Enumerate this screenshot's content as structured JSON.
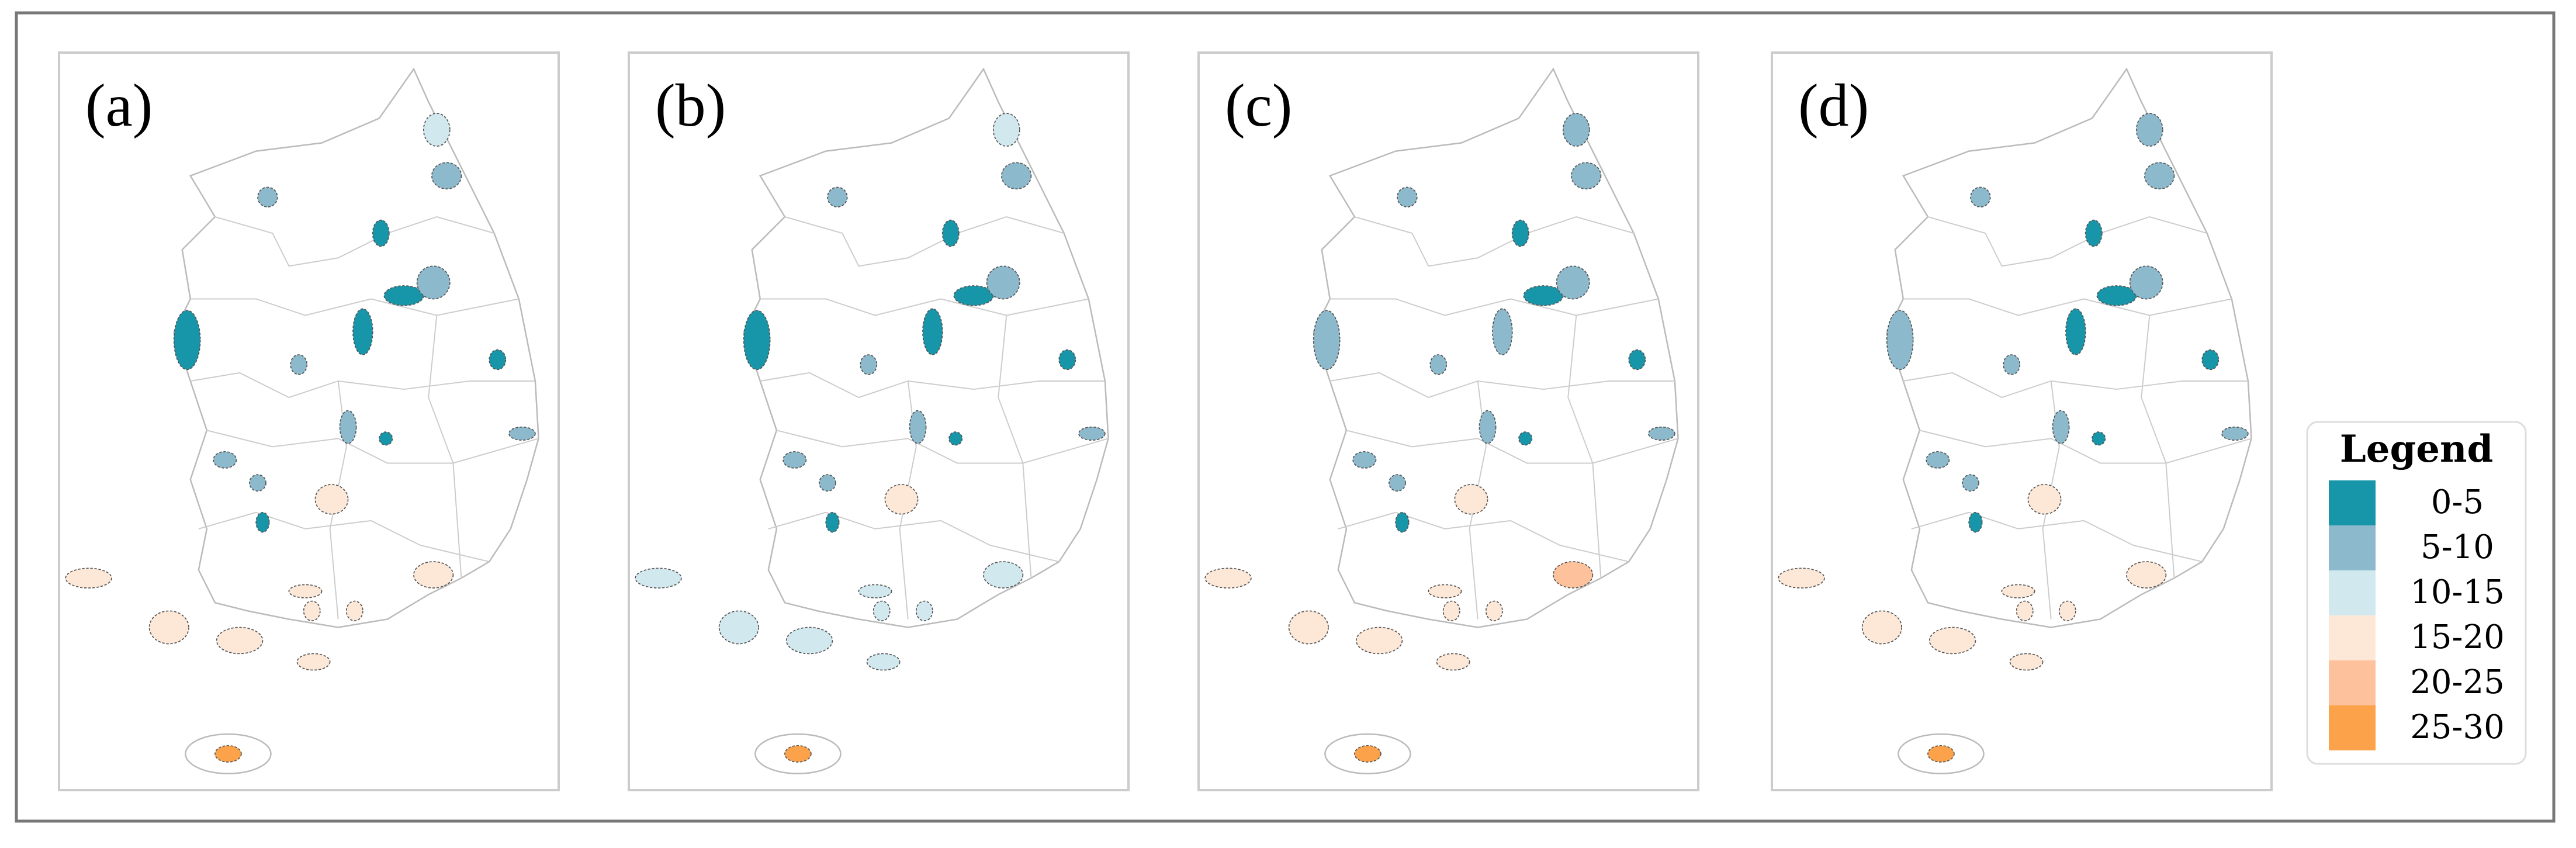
{
  "panels": [
    {
      "label": "(a)",
      "classes": [
        2,
        1,
        1,
        0,
        0,
        1,
        0,
        1,
        0,
        0,
        1,
        0,
        1,
        1,
        1,
        3,
        0,
        3,
        3,
        3,
        3,
        3,
        3,
        3,
        3,
        5
      ]
    },
    {
      "label": "(b)",
      "classes": [
        2,
        1,
        1,
        0,
        0,
        1,
        0,
        1,
        0,
        0,
        1,
        0,
        1,
        1,
        1,
        3,
        0,
        2,
        2,
        2,
        2,
        2,
        2,
        2,
        2,
        5
      ]
    },
    {
      "label": "(c)",
      "classes": [
        1,
        1,
        1,
        0,
        0,
        1,
        1,
        1,
        1,
        0,
        1,
        0,
        1,
        1,
        1,
        3,
        0,
        3,
        3,
        3,
        3,
        4,
        3,
        3,
        3,
        5
      ]
    },
    {
      "label": "(d)",
      "classes": [
        1,
        1,
        1,
        0,
        0,
        1,
        1,
        1,
        0,
        0,
        1,
        0,
        1,
        1,
        1,
        3,
        0,
        3,
        3,
        3,
        3,
        3,
        3,
        3,
        3,
        5
      ]
    }
  ],
  "legend": {
    "title": "Legend",
    "items": [
      {
        "label": "0-5",
        "color": "#1896a9"
      },
      {
        "label": "5-10",
        "color": "#8cb9cb"
      },
      {
        "label": "10-15",
        "color": "#d2e8ef"
      },
      {
        "label": "15-20",
        "color": "#fde8d8"
      },
      {
        "label": "20-25",
        "color": "#fdc29c"
      },
      {
        "label": "25-30",
        "color": "#fba24a"
      }
    ]
  }
}
